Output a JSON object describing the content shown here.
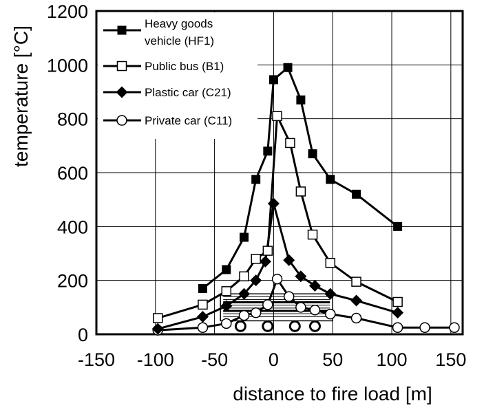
{
  "chart_data": {
    "type": "line",
    "title": "",
    "xlabel": "distance to fire load [m]",
    "ylabel": "temperature [°C]",
    "xlim": [
      -150,
      160
    ],
    "ylim": [
      0,
      1200
    ],
    "xticks": [
      -150,
      -100,
      -50,
      0,
      50,
      100,
      150
    ],
    "yticks": [
      0,
      200,
      400,
      600,
      800,
      1000,
      1200
    ],
    "grid": true,
    "legend_position": "top-left",
    "series": [
      {
        "name": "Heavy goods vehicle (HF1)",
        "legend_lines": [
          "Heavy goods",
          "vehicle (HF1)"
        ],
        "marker": "filled-square",
        "points": [
          [
            -60,
            170
          ],
          [
            -40,
            240
          ],
          [
            -25,
            360
          ],
          [
            -15,
            575
          ],
          [
            -5,
            680
          ],
          [
            0,
            945
          ],
          [
            12,
            990
          ],
          [
            23,
            870
          ],
          [
            33,
            670
          ],
          [
            48,
            575
          ],
          [
            70,
            520
          ],
          [
            105,
            400
          ]
        ]
      },
      {
        "name": "Public bus (B1)",
        "legend_lines": [
          "Public bus (B1)"
        ],
        "marker": "open-square",
        "points": [
          [
            -98,
            60
          ],
          [
            -60,
            110
          ],
          [
            -40,
            160
          ],
          [
            -25,
            215
          ],
          [
            -15,
            280
          ],
          [
            -5,
            310
          ],
          [
            3,
            810
          ],
          [
            14,
            710
          ],
          [
            23,
            530
          ],
          [
            33,
            370
          ],
          [
            48,
            265
          ],
          [
            70,
            195
          ],
          [
            105,
            120
          ]
        ]
      },
      {
        "name": "Plastic car (C21)",
        "legend_lines": [
          "Plastic car (C21)"
        ],
        "marker": "filled-diamond",
        "points": [
          [
            -98,
            20
          ],
          [
            -60,
            65
          ],
          [
            -40,
            105
          ],
          [
            -25,
            150
          ],
          [
            -15,
            200
          ],
          [
            -7,
            270
          ],
          [
            0,
            485
          ],
          [
            13,
            275
          ],
          [
            23,
            215
          ],
          [
            35,
            180
          ],
          [
            48,
            150
          ],
          [
            70,
            125
          ],
          [
            105,
            80
          ]
        ]
      },
      {
        "name": "Private car (C11)",
        "legend_lines": [
          "Private car (C11)"
        ],
        "marker": "open-circle",
        "points": [
          [
            -98,
            15
          ],
          [
            -60,
            25
          ],
          [
            -40,
            40
          ],
          [
            -25,
            70
          ],
          [
            -15,
            80
          ],
          [
            -5,
            110
          ],
          [
            3,
            205
          ],
          [
            13,
            140
          ],
          [
            23,
            100
          ],
          [
            35,
            90
          ],
          [
            48,
            75
          ],
          [
            70,
            60
          ],
          [
            105,
            25
          ],
          [
            128,
            25
          ],
          [
            153,
            25
          ]
        ]
      }
    ]
  }
}
